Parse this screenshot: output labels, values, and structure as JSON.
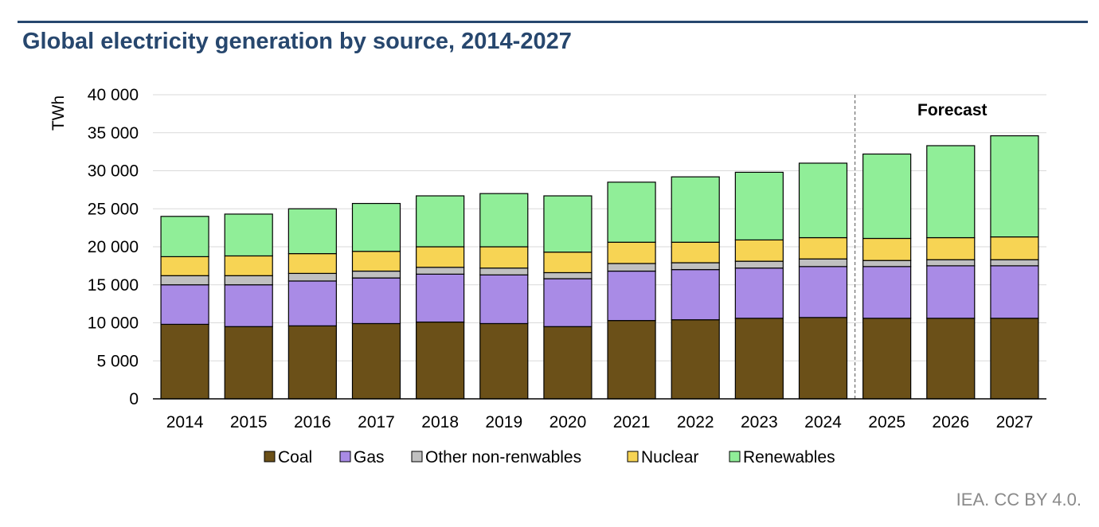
{
  "header": {
    "title": "Global electricity generation by source, 2014-2027"
  },
  "footer": {
    "credit": "IEA. CC BY 4.0."
  },
  "chart_data": {
    "type": "bar",
    "stacked": true,
    "title": "Global electricity generation by source, 2014-2027",
    "xlabel": "",
    "ylabel": "TWh",
    "ylim": [
      0,
      40000
    ],
    "yticks": [
      0,
      5000,
      10000,
      15000,
      20000,
      25000,
      30000,
      35000,
      40000
    ],
    "ytick_labels": [
      "0",
      "5 000",
      "10 000",
      "15 000",
      "20 000",
      "25 000",
      "30 000",
      "35 000",
      "40 000"
    ],
    "grid": "horizontal",
    "legend_position": "bottom",
    "annotation": "Forecast",
    "forecast_start_category": "2025",
    "categories": [
      "2014",
      "2015",
      "2016",
      "2017",
      "2018",
      "2019",
      "2020",
      "2021",
      "2022",
      "2023",
      "2024",
      "2025",
      "2026",
      "2027"
    ],
    "series": [
      {
        "name": "Coal",
        "color": "#6b5018",
        "values": [
          9800,
          9500,
          9600,
          9900,
          10100,
          9900,
          9500,
          10300,
          10400,
          10600,
          10700,
          10600,
          10600,
          10600
        ]
      },
      {
        "name": "Gas",
        "color": "#a98be6",
        "values": [
          5200,
          5500,
          5900,
          6000,
          6300,
          6400,
          6300,
          6500,
          6600,
          6600,
          6700,
          6800,
          6900,
          6900
        ]
      },
      {
        "name": "Other non-renwables",
        "color": "#c0c0c0",
        "values": [
          1200,
          1200,
          1000,
          900,
          900,
          900,
          800,
          1000,
          900,
          900,
          1000,
          800,
          800,
          800
        ]
      },
      {
        "name": "Nuclear",
        "color": "#f7d454",
        "values": [
          2500,
          2600,
          2600,
          2600,
          2700,
          2800,
          2700,
          2800,
          2700,
          2800,
          2800,
          2900,
          2900,
          3000
        ]
      },
      {
        "name": "Renewables",
        "color": "#90ee98",
        "values": [
          5300,
          5500,
          5900,
          6300,
          6700,
          7000,
          7400,
          7900,
          8600,
          8900,
          9800,
          11100,
          12100,
          13300
        ]
      }
    ]
  }
}
